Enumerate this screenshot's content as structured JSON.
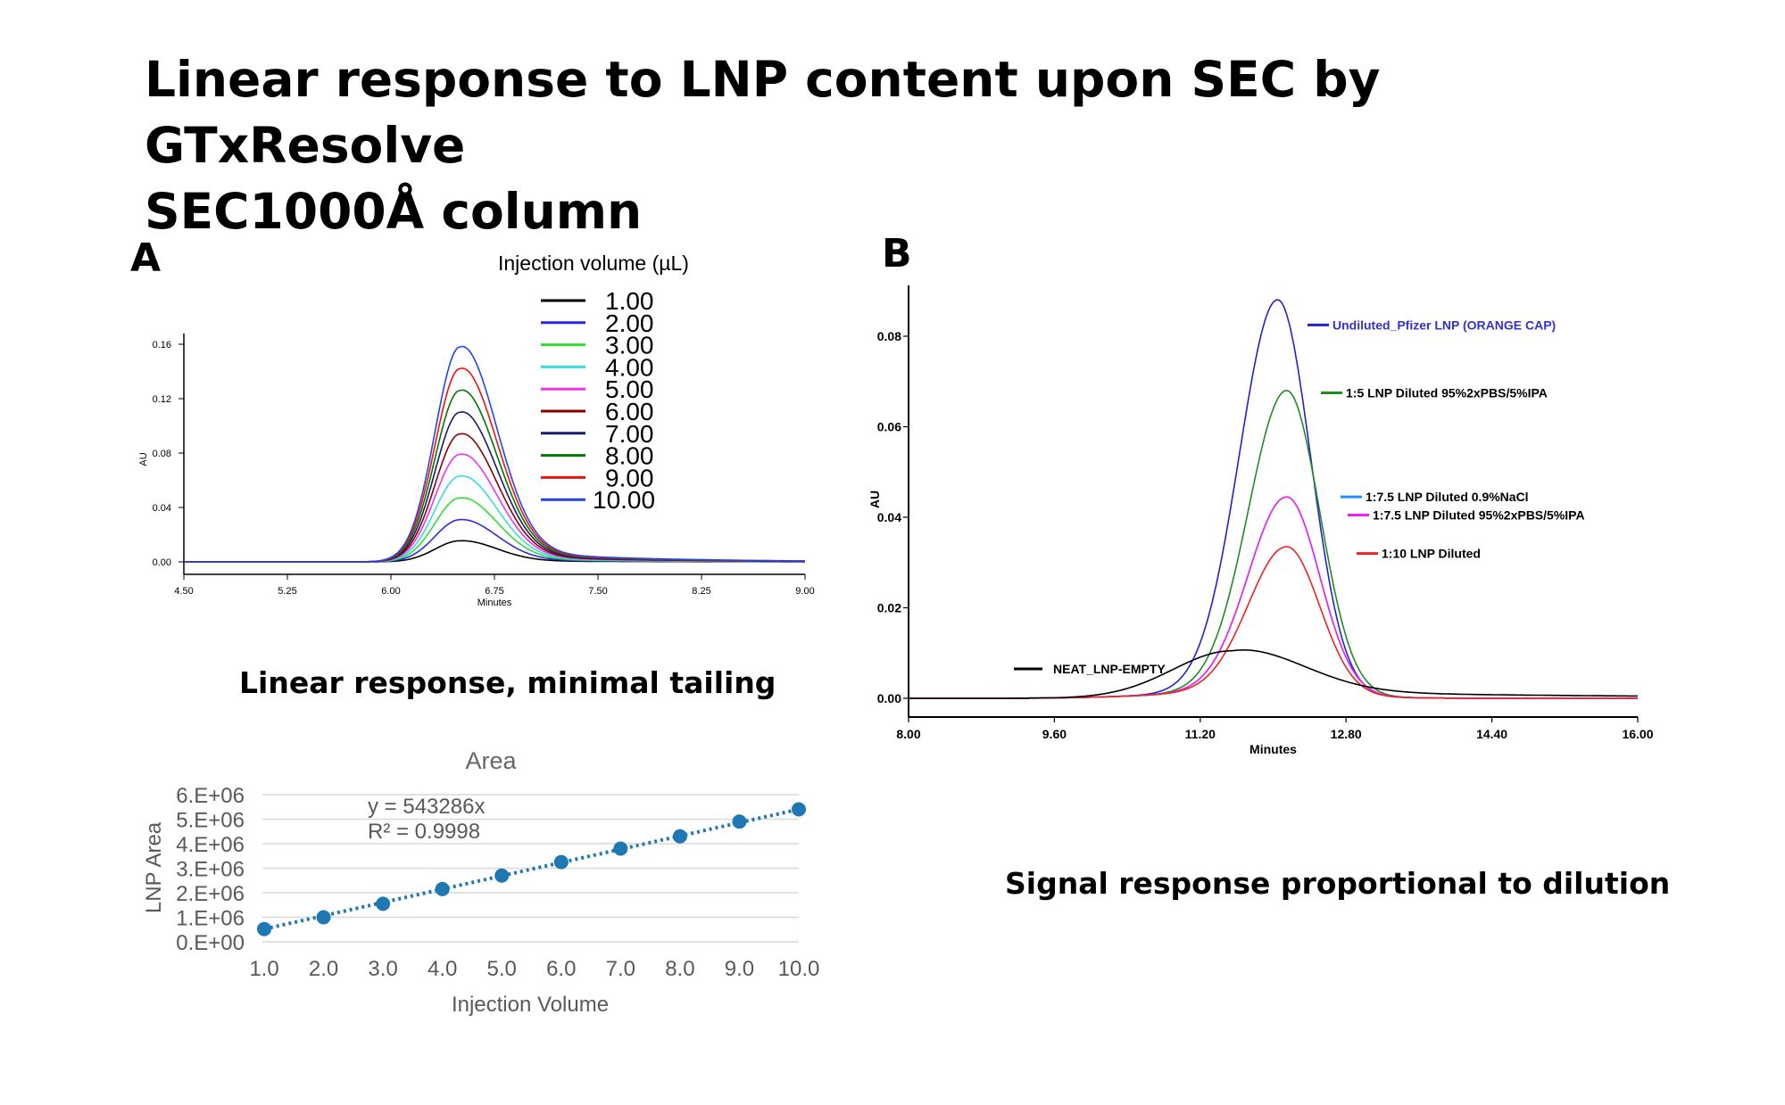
{
  "title": {
    "line1": "Linear response to LNP content upon SEC by GTxResolve",
    "line2": "SEC1000Å column"
  },
  "panels": {
    "a_label": "A",
    "b_label": "B",
    "a_caption": "Linear response, minimal tailing",
    "b_caption": "Signal response proportional to dilution"
  },
  "chart_data": [
    {
      "id": "chromatogram_a",
      "type": "line",
      "title": "",
      "xlabel": "Minutes",
      "ylabel": "AU",
      "xlim": [
        4.5,
        9.0
      ],
      "ylim": [
        -0.004,
        0.165
      ],
      "x_ticks": [
        "4.50",
        "5.25",
        "6.00",
        "6.75",
        "7.50",
        "8.25",
        "9.00"
      ],
      "y_ticks": [
        "0.00",
        "0.04",
        "0.08",
        "0.12",
        "0.16"
      ],
      "legend_title": "Injection volume (µL)",
      "legend_position": "top-right",
      "peak_time": 6.5,
      "series": [
        {
          "name": "1.00",
          "color": "#000000",
          "peak": 0.0155
        },
        {
          "name": "2.00",
          "color": "#2a2ae8",
          "peak": 0.031
        },
        {
          "name": "3.00",
          "color": "#33dd33",
          "peak": 0.047
        },
        {
          "name": "4.00",
          "color": "#33dede",
          "peak": 0.063
        },
        {
          "name": "5.00",
          "color": "#ee33ee",
          "peak": 0.079
        },
        {
          "name": "6.00",
          "color": "#880000",
          "peak": 0.094
        },
        {
          "name": "7.00",
          "color": "#1a1a6e",
          "peak": 0.11
        },
        {
          "name": "8.00",
          "color": "#007700",
          "peak": 0.126
        },
        {
          "name": "9.00",
          "color": "#ee1111",
          "peak": 0.142
        },
        {
          "name": "10.00",
          "color": "#2244ee",
          "peak": 0.158
        }
      ]
    },
    {
      "id": "area_linearity",
      "type": "scatter",
      "title": "Area",
      "xlabel": "Injection Volume",
      "ylabel": "LNP Area",
      "xlim": [
        1.0,
        10.0
      ],
      "ylim": [
        0,
        6000000
      ],
      "x_ticks": [
        "1.0",
        "2.0",
        "3.0",
        "4.0",
        "5.0",
        "6.0",
        "7.0",
        "8.0",
        "9.0",
        "10.0"
      ],
      "y_ticks": [
        "0.E+00",
        "1.E+06",
        "2.E+06",
        "3.E+06",
        "4.E+06",
        "5.E+06",
        "6.E+06"
      ],
      "grid": true,
      "trendline": "dotted linear",
      "annotations": [
        "y = 543286x",
        "R² = 0.9998"
      ],
      "color": "#1f77b4",
      "x": [
        1,
        2,
        3,
        4,
        5,
        6,
        7,
        8,
        9,
        10
      ],
      "y": [
        520000,
        1000000,
        1550000,
        2150000,
        2700000,
        3250000,
        3800000,
        4300000,
        4900000,
        5400000
      ]
    },
    {
      "id": "chromatogram_b",
      "type": "line",
      "title": "",
      "xlabel": "Minutes",
      "ylabel": "AU",
      "xlim": [
        8.0,
        16.0
      ],
      "ylim": [
        -0.004,
        0.09
      ],
      "x_ticks": [
        "8.00",
        "9.60",
        "11.20",
        "12.80",
        "14.40",
        "16.00"
      ],
      "y_ticks": [
        "0.00",
        "0.02",
        "0.04",
        "0.06",
        "0.08"
      ],
      "series": [
        {
          "name": "Undiluted_Pfizer LNP (ORANGE CAP)",
          "color": "#2222cc",
          "label_color": "#3333cc",
          "peak_time": 12.05,
          "peak": 0.087,
          "label_y": 0.0825
        },
        {
          "name": "1:5 LNP Diluted 95%2xPBS/5%IPA",
          "color": "#228b22",
          "label_color": "#000000",
          "peak_time": 12.15,
          "peak": 0.067,
          "label_y": 0.0675
        },
        {
          "name": "1:7.5 LNP Diluted 0.9%NaCl",
          "color": "#1e90ff",
          "label_color": "#000000",
          "peak_time": 12.15,
          "peak": 0.0435,
          "label_y": 0.0445
        },
        {
          "name": "1:7.5 LNP Diluted 95%2xPBS/5%IPA",
          "color": "#ee22ee",
          "label_color": "#000000",
          "peak_time": 12.15,
          "peak": 0.0435,
          "label_y": 0.0405
        },
        {
          "name": "1:10 LNP Diluted",
          "color": "#ee2222",
          "label_color": "#000000",
          "peak_time": 12.15,
          "peak": 0.0325,
          "label_y": 0.032
        },
        {
          "name": "NEAT_LNP-EMPTY",
          "color": "#000000",
          "label_color": "#000000",
          "peak_time": 11.55,
          "peak": 0.0105,
          "label_y": 0.0065
        }
      ]
    }
  ]
}
